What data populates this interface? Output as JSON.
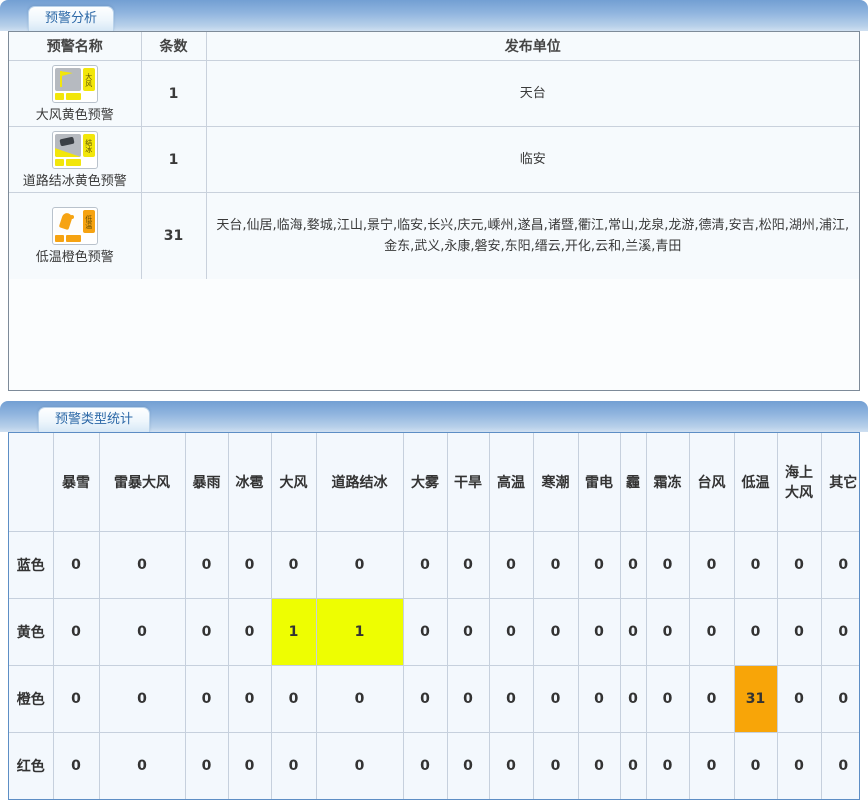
{
  "panel1": {
    "tab_label": "预警分析",
    "table": {
      "headers": [
        "预警名称",
        "条数",
        "发布单位"
      ],
      "rows": [
        {
          "name": "大风黄色预警",
          "count": "1",
          "units": "天台",
          "icon": "gale-yellow-warning-icon",
          "icon_symbol": "flag",
          "icon_side_text": "大风",
          "icon_main_bg": "#b6bac0",
          "icon_accent": "#f2e60b"
        },
        {
          "name": "道路结冰黄色预警",
          "count": "1",
          "units": "临安",
          "icon": "road-icing-yellow-warning-icon",
          "icon_symbol": "car-skid",
          "icon_side_text": "结冰",
          "icon_main_bg": "#b6bac0",
          "icon_accent": "#f2e60b"
        },
        {
          "name": "低温橙色预警",
          "count": "31",
          "units": "天台,仙居,临海,婺城,江山,景宁,临安,长兴,庆元,嵊州,遂昌,诸暨,衢江,常山,龙泉,龙游,德清,安吉,松阳,湖州,浦江,金东,武义,永康,磐安,东阳,缙云,开化,云和,兰溪,青田",
          "icon": "low-temperature-orange-warning-icon",
          "icon_symbol": "thermometer",
          "icon_side_text": "低温",
          "icon_main_bg": "#fdfdfd",
          "icon_accent": "#f6a312"
        }
      ]
    }
  },
  "panel2": {
    "tab_label": "预警类型统计",
    "matrix": {
      "columns": [
        "暴雪",
        "雷暴大风",
        "暴雨",
        "冰雹",
        "大风",
        "道路结冰",
        "大雾",
        "干旱",
        "高温",
        "寒潮",
        "雷电",
        "霾",
        "霜冻",
        "台风",
        "低温",
        "海上大风",
        "其它"
      ],
      "rows": [
        {
          "label": "蓝色",
          "values": [
            0,
            0,
            0,
            0,
            0,
            0,
            0,
            0,
            0,
            0,
            0,
            0,
            0,
            0,
            0,
            0,
            0
          ]
        },
        {
          "label": "黄色",
          "highlight_color": "#eefe01",
          "values": [
            0,
            0,
            0,
            0,
            1,
            1,
            0,
            0,
            0,
            0,
            0,
            0,
            0,
            0,
            0,
            0,
            0
          ]
        },
        {
          "label": "橙色",
          "highlight_color": "#f8a508",
          "values": [
            0,
            0,
            0,
            0,
            0,
            0,
            0,
            0,
            0,
            0,
            0,
            0,
            0,
            0,
            31,
            0,
            0
          ]
        },
        {
          "label": "红色",
          "values": [
            0,
            0,
            0,
            0,
            0,
            0,
            0,
            0,
            0,
            0,
            0,
            0,
            0,
            0,
            0,
            0,
            0
          ]
        }
      ]
    }
  },
  "colors": {
    "yellow_highlight": "#eefe01",
    "orange_highlight": "#f8a508",
    "yellow_warning_accent": "#f2e60b",
    "orange_warning_accent": "#f6a312",
    "tab_text": "#2c68a7",
    "tabbar_top": "#739fd3",
    "tabbar_bottom": "#cfe0f1"
  }
}
